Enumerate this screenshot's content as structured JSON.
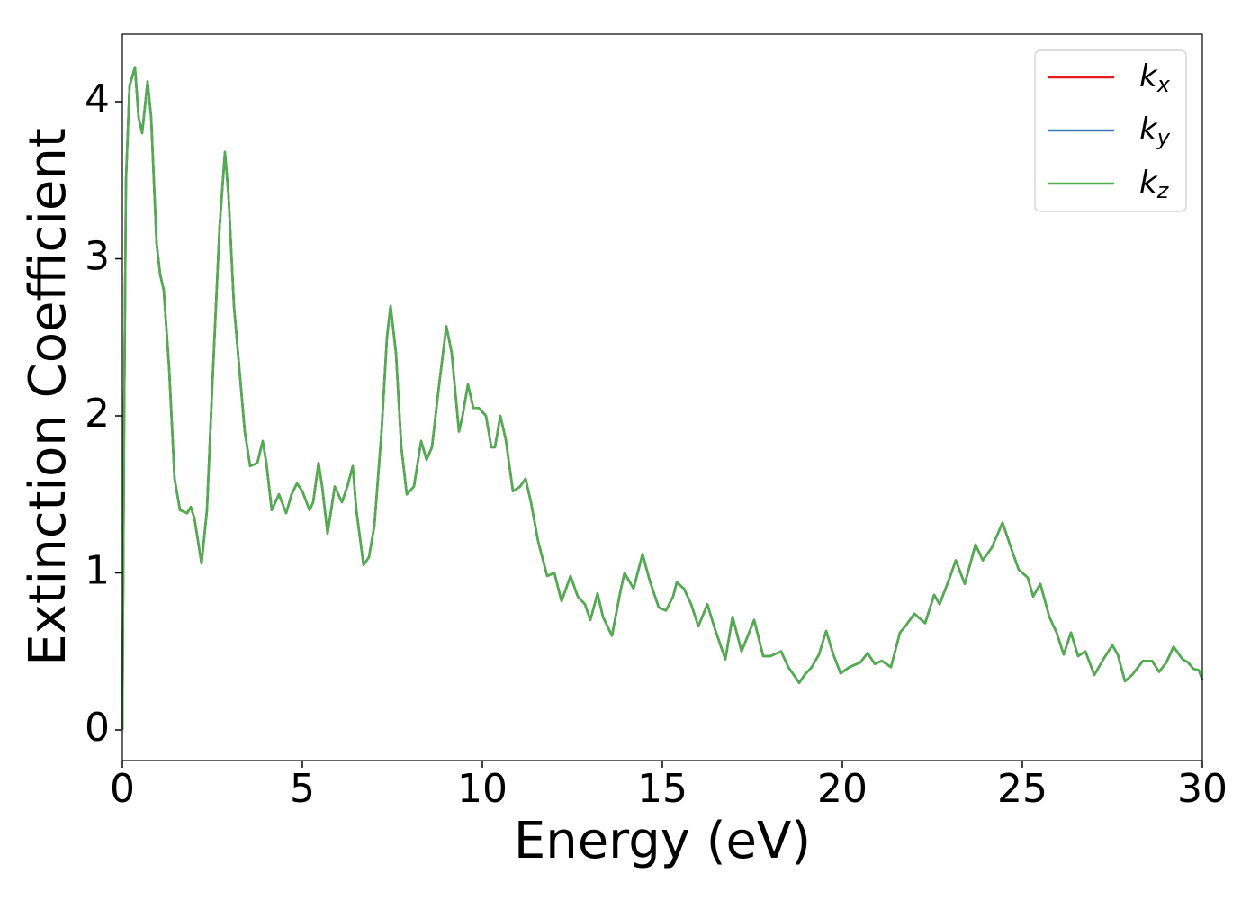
{
  "chart_data": {
    "type": "line",
    "xlabel": "Energy (eV)",
    "ylabel": "Extinction Coefficient",
    "xlim": [
      0,
      30
    ],
    "ylim": [
      -0.195,
      4.43
    ],
    "xticks": [
      0,
      5,
      10,
      15,
      20,
      25,
      30
    ],
    "yticks": [
      0,
      1,
      2,
      3,
      4
    ],
    "legend": "upper right",
    "x": [
      0,
      0.05,
      0.1,
      0.2,
      0.35,
      0.45,
      0.55,
      0.7,
      0.8,
      0.95,
      1.05,
      1.15,
      1.3,
      1.45,
      1.6,
      1.8,
      1.9,
      2.0,
      2.2,
      2.35,
      2.5,
      2.7,
      2.85,
      2.95,
      3.1,
      3.25,
      3.4,
      3.55,
      3.75,
      3.9,
      4.0,
      4.15,
      4.35,
      4.55,
      4.7,
      4.85,
      5.0,
      5.2,
      5.3,
      5.45,
      5.55,
      5.7,
      5.9,
      6.1,
      6.25,
      6.4,
      6.5,
      6.7,
      6.85,
      7.0,
      7.2,
      7.35,
      7.45,
      7.6,
      7.75,
      7.9,
      8.1,
      8.3,
      8.45,
      8.6,
      8.8,
      9.0,
      9.15,
      9.35,
      9.45,
      9.6,
      9.75,
      9.9,
      10.1,
      10.25,
      10.35,
      10.5,
      10.65,
      10.85,
      11.05,
      11.2,
      11.35,
      11.55,
      11.8,
      12.0,
      12.2,
      12.45,
      12.65,
      12.85,
      13.0,
      13.2,
      13.35,
      13.6,
      13.85,
      13.95,
      14.2,
      14.45,
      14.65,
      14.9,
      15.1,
      15.3,
      15.4,
      15.6,
      15.8,
      16.0,
      16.25,
      16.45,
      16.75,
      16.95,
      17.2,
      17.55,
      17.8,
      18.0,
      18.3,
      18.5,
      18.8,
      18.95,
      19.15,
      19.35,
      19.55,
      19.75,
      19.95,
      20.2,
      20.5,
      20.7,
      20.9,
      21.1,
      21.35,
      21.6,
      21.75,
      22.0,
      22.3,
      22.55,
      22.7,
      23.0,
      23.15,
      23.4,
      23.7,
      23.9,
      24.15,
      24.45,
      24.7,
      24.9,
      25.15,
      25.3,
      25.5,
      25.75,
      25.95,
      26.15,
      26.35,
      26.55,
      26.75,
      27.0,
      27.25,
      27.5,
      27.65,
      27.85,
      28.05,
      28.35,
      28.6,
      28.8,
      29.0,
      29.2,
      29.45,
      29.6,
      29.75,
      29.9,
      30.0
    ],
    "series": [
      {
        "name": "kx",
        "color": "#e41a1c",
        "values": [
          0,
          2.0,
          3.5,
          4.1,
          4.22,
          3.9,
          3.8,
          4.13,
          3.9,
          3.1,
          2.9,
          2.8,
          2.3,
          1.6,
          1.4,
          1.38,
          1.42,
          1.35,
          1.06,
          1.4,
          2.2,
          3.2,
          3.68,
          3.4,
          2.7,
          2.3,
          1.9,
          1.68,
          1.7,
          1.84,
          1.7,
          1.4,
          1.5,
          1.38,
          1.5,
          1.57,
          1.52,
          1.4,
          1.45,
          1.7,
          1.55,
          1.25,
          1.55,
          1.45,
          1.55,
          1.68,
          1.4,
          1.05,
          1.1,
          1.3,
          1.9,
          2.5,
          2.7,
          2.4,
          1.8,
          1.5,
          1.55,
          1.84,
          1.72,
          1.8,
          2.2,
          2.57,
          2.4,
          1.9,
          2.0,
          2.2,
          2.05,
          2.05,
          2.0,
          1.8,
          1.8,
          2.0,
          1.85,
          1.52,
          1.55,
          1.6,
          1.45,
          1.2,
          0.98,
          1.0,
          0.82,
          0.98,
          0.85,
          0.8,
          0.7,
          0.87,
          0.72,
          0.6,
          0.9,
          1.0,
          0.9,
          1.12,
          0.95,
          0.78,
          0.76,
          0.85,
          0.94,
          0.9,
          0.8,
          0.66,
          0.8,
          0.65,
          0.45,
          0.72,
          0.5,
          0.7,
          0.47,
          0.47,
          0.5,
          0.4,
          0.3,
          0.35,
          0.4,
          0.48,
          0.63,
          0.48,
          0.36,
          0.4,
          0.43,
          0.49,
          0.42,
          0.44,
          0.4,
          0.62,
          0.66,
          0.74,
          0.68,
          0.86,
          0.8,
          0.98,
          1.08,
          0.93,
          1.18,
          1.08,
          1.16,
          1.32,
          1.15,
          1.02,
          0.97,
          0.85,
          0.93,
          0.72,
          0.62,
          0.48,
          0.62,
          0.47,
          0.5,
          0.35,
          0.45,
          0.54,
          0.48,
          0.31,
          0.35,
          0.44,
          0.44,
          0.37,
          0.43,
          0.53,
          0.45,
          0.43,
          0.39,
          0.38,
          0.32
        ]
      },
      {
        "name": "ky",
        "color": "#377eb8",
        "values": [
          0,
          2.0,
          3.5,
          4.1,
          4.22,
          3.9,
          3.8,
          4.13,
          3.9,
          3.1,
          2.9,
          2.8,
          2.3,
          1.6,
          1.4,
          1.38,
          1.42,
          1.35,
          1.06,
          1.4,
          2.2,
          3.2,
          3.68,
          3.4,
          2.7,
          2.3,
          1.9,
          1.68,
          1.7,
          1.84,
          1.7,
          1.4,
          1.5,
          1.38,
          1.5,
          1.57,
          1.52,
          1.4,
          1.45,
          1.7,
          1.55,
          1.25,
          1.55,
          1.45,
          1.55,
          1.68,
          1.4,
          1.05,
          1.1,
          1.3,
          1.9,
          2.5,
          2.7,
          2.4,
          1.8,
          1.5,
          1.55,
          1.84,
          1.72,
          1.8,
          2.2,
          2.57,
          2.4,
          1.9,
          2.0,
          2.2,
          2.05,
          2.05,
          2.0,
          1.8,
          1.8,
          2.0,
          1.85,
          1.52,
          1.55,
          1.6,
          1.45,
          1.2,
          0.98,
          1.0,
          0.82,
          0.98,
          0.85,
          0.8,
          0.7,
          0.87,
          0.72,
          0.6,
          0.9,
          1.0,
          0.9,
          1.12,
          0.95,
          0.78,
          0.76,
          0.85,
          0.94,
          0.9,
          0.8,
          0.66,
          0.8,
          0.65,
          0.45,
          0.72,
          0.5,
          0.7,
          0.47,
          0.47,
          0.5,
          0.4,
          0.3,
          0.35,
          0.4,
          0.48,
          0.63,
          0.48,
          0.36,
          0.4,
          0.43,
          0.49,
          0.42,
          0.44,
          0.4,
          0.62,
          0.66,
          0.74,
          0.68,
          0.86,
          0.8,
          0.98,
          1.08,
          0.93,
          1.18,
          1.08,
          1.16,
          1.32,
          1.15,
          1.02,
          0.97,
          0.85,
          0.93,
          0.72,
          0.62,
          0.48,
          0.62,
          0.47,
          0.5,
          0.35,
          0.45,
          0.54,
          0.48,
          0.31,
          0.35,
          0.44,
          0.44,
          0.37,
          0.43,
          0.53,
          0.45,
          0.43,
          0.39,
          0.38,
          0.32
        ]
      },
      {
        "name": "kz",
        "color": "#4daf4a",
        "values": [
          0,
          2.0,
          3.5,
          4.1,
          4.22,
          3.9,
          3.8,
          4.13,
          3.9,
          3.1,
          2.9,
          2.8,
          2.3,
          1.6,
          1.4,
          1.38,
          1.42,
          1.35,
          1.06,
          1.4,
          2.2,
          3.2,
          3.68,
          3.4,
          2.7,
          2.3,
          1.9,
          1.68,
          1.7,
          1.84,
          1.7,
          1.4,
          1.5,
          1.38,
          1.5,
          1.57,
          1.52,
          1.4,
          1.45,
          1.7,
          1.55,
          1.25,
          1.55,
          1.45,
          1.55,
          1.68,
          1.4,
          1.05,
          1.1,
          1.3,
          1.9,
          2.5,
          2.7,
          2.4,
          1.8,
          1.5,
          1.55,
          1.84,
          1.72,
          1.8,
          2.2,
          2.57,
          2.4,
          1.9,
          2.0,
          2.2,
          2.05,
          2.05,
          2.0,
          1.8,
          1.8,
          2.0,
          1.85,
          1.52,
          1.55,
          1.6,
          1.45,
          1.2,
          0.98,
          1.0,
          0.82,
          0.98,
          0.85,
          0.8,
          0.7,
          0.87,
          0.72,
          0.6,
          0.9,
          1.0,
          0.9,
          1.12,
          0.95,
          0.78,
          0.76,
          0.85,
          0.94,
          0.9,
          0.8,
          0.66,
          0.8,
          0.65,
          0.45,
          0.72,
          0.5,
          0.7,
          0.47,
          0.47,
          0.5,
          0.4,
          0.3,
          0.35,
          0.4,
          0.48,
          0.63,
          0.48,
          0.36,
          0.4,
          0.43,
          0.49,
          0.42,
          0.44,
          0.4,
          0.62,
          0.66,
          0.74,
          0.68,
          0.86,
          0.8,
          0.98,
          1.08,
          0.93,
          1.18,
          1.08,
          1.16,
          1.32,
          1.15,
          1.02,
          0.97,
          0.85,
          0.93,
          0.72,
          0.62,
          0.48,
          0.62,
          0.47,
          0.5,
          0.35,
          0.45,
          0.54,
          0.48,
          0.31,
          0.35,
          0.44,
          0.44,
          0.37,
          0.43,
          0.53,
          0.45,
          0.43,
          0.39,
          0.38,
          0.32
        ]
      }
    ]
  }
}
